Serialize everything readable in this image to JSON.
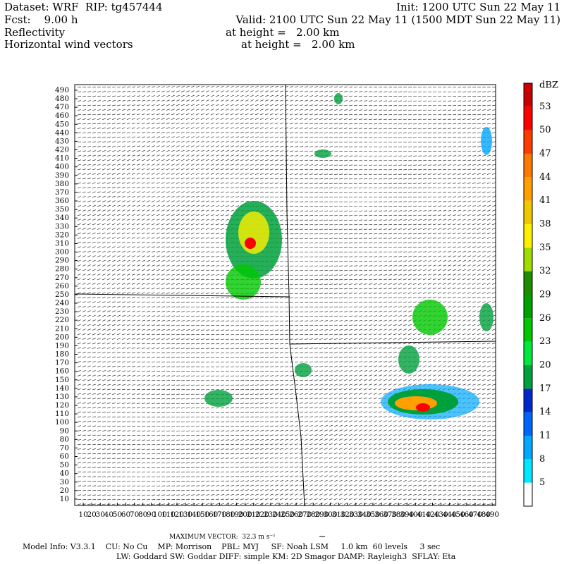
{
  "header": {
    "dataset": "Dataset: WRF  RIP: tg457444",
    "init": "Init: 1200 UTC Sun 22 May 11",
    "fcst": "Fcst:    9.00 h",
    "valid": "Valid: 2100 UTC Sun 22 May 11 (1500 MDT Sun 22 May 11)",
    "field1": "Reflectivity",
    "field1_level": "at height =   2.00 km",
    "field2": "Horizontal wind vectors",
    "field2_level": "at height =   2.00 km"
  },
  "plot": {
    "xticks": [
      10,
      20,
      30,
      40,
      50,
      60,
      70,
      80,
      90,
      100,
      110,
      120,
      130,
      140,
      150,
      160,
      170,
      180,
      190,
      200,
      210,
      220,
      230,
      240,
      250,
      260,
      270,
      280,
      290,
      300,
      310,
      320,
      330,
      340,
      350,
      360,
      370,
      380,
      390,
      400,
      410,
      420,
      430,
      440,
      450,
      460,
      470,
      480,
      490
    ],
    "yticks": [
      10,
      20,
      30,
      40,
      50,
      60,
      70,
      80,
      90,
      100,
      110,
      120,
      130,
      140,
      150,
      160,
      170,
      180,
      190,
      200,
      210,
      220,
      230,
      240,
      250,
      260,
      270,
      280,
      290,
      300,
      310,
      320,
      330,
      340,
      350,
      360,
      370,
      380,
      390,
      400,
      410,
      420,
      430,
      440,
      450,
      460,
      470,
      480,
      490
    ]
  },
  "colorbar": {
    "unit": "dBZ",
    "levels": [
      5,
      8,
      11,
      14,
      17,
      20,
      23,
      26,
      29,
      32,
      35,
      38,
      41,
      44,
      47,
      50,
      53
    ],
    "colors": [
      "#ffffff",
      "#00e8ff",
      "#00a8ff",
      "#0064ff",
      "#0028c8",
      "#00a03c",
      "#00e83c",
      "#00c800",
      "#00a000",
      "#1e8c00",
      "#a0dc00",
      "#fff000",
      "#f0c800",
      "#ffa000",
      "#ff7800",
      "#ff3c00",
      "#ff0000",
      "#c80000"
    ]
  },
  "footer": {
    "max_vector": "MAXIMUM VECTOR:  32.3 m s⁻¹",
    "model_info": "Model Info: V3.3.1    CU: No Cu    MP: Morrison    PBL: MYJ     SF: Noah LSM     1.0 km  60 levels     3 sec",
    "physics": "LW: Goddard SW: Goddar DIFF: simple KM: 2D Smagor DAMP: Rayleigh3  SFLAY: Eta"
  }
}
